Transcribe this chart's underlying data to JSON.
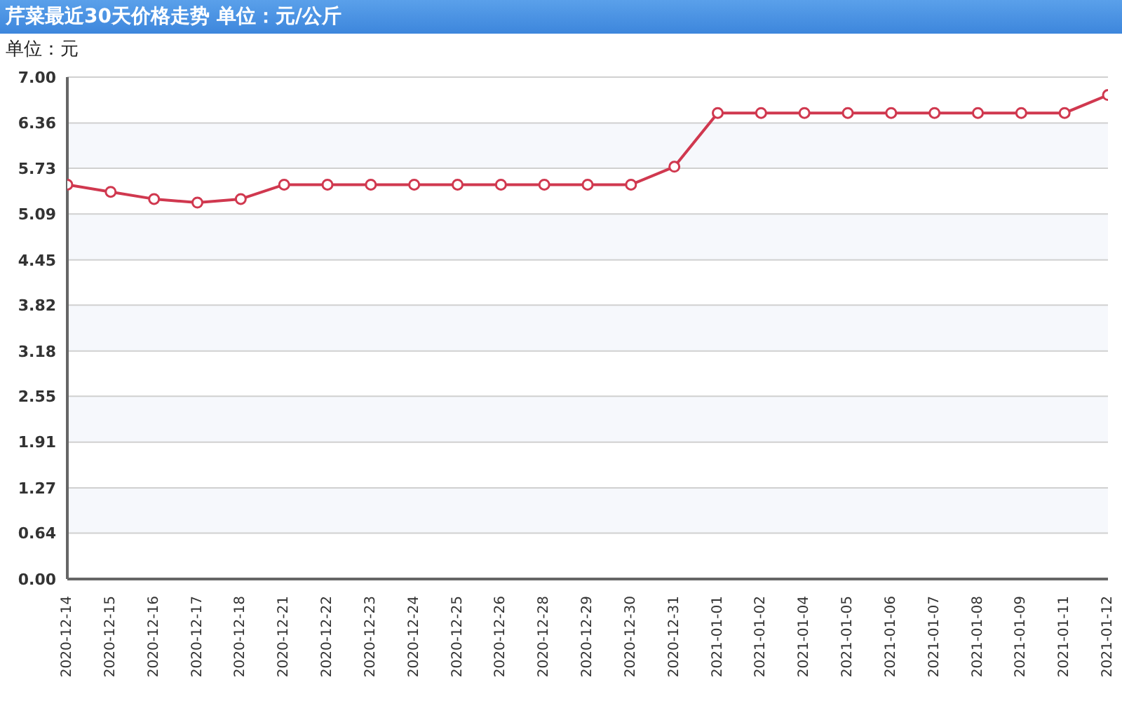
{
  "chart_data": {
    "type": "line",
    "title": "芹菜最近30天价格走势 单位：元/公斤",
    "subtitle": "单位：元",
    "categories": [
      "2020-12-14",
      "2020-12-15",
      "2020-12-16",
      "2020-12-17",
      "2020-12-18",
      "2020-12-21",
      "2020-12-22",
      "2020-12-23",
      "2020-12-24",
      "2020-12-25",
      "2020-12-26",
      "2020-12-28",
      "2020-12-29",
      "2020-12-30",
      "2020-12-31",
      "2021-01-01",
      "2021-01-02",
      "2021-01-04",
      "2021-01-05",
      "2021-01-06",
      "2021-01-07",
      "2021-01-08",
      "2021-01-09",
      "2021-01-11",
      "2021-01-12"
    ],
    "series": [
      {
        "color": "#d0384f",
        "values": [
          5.5,
          5.4,
          5.3,
          5.25,
          5.3,
          5.5,
          5.5,
          5.5,
          5.5,
          5.5,
          5.5,
          5.5,
          5.5,
          5.5,
          5.75,
          6.5,
          6.5,
          6.5,
          6.5,
          6.5,
          6.5,
          6.5,
          6.5,
          6.5,
          6.75
        ]
      }
    ],
    "ylim": [
      0,
      7
    ],
    "yticks": [
      {
        "value": 0,
        "label": "0.00"
      },
      0.64,
      1.27,
      1.91,
      2.55,
      3.18,
      3.82,
      4.45,
      5.09,
      5.73,
      6.36,
      {
        "value": 7,
        "label": "7.00"
      }
    ],
    "grid": "y",
    "marker": "circle",
    "line_style": "solid"
  }
}
